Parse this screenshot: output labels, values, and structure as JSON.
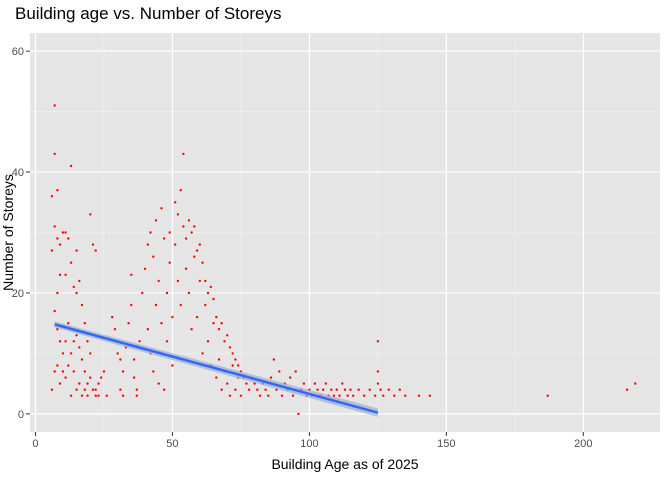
{
  "chart_data": {
    "type": "scatter",
    "title": "Building age vs. Number of Storeys",
    "xlabel": "Building Age as of 2025",
    "ylabel": "Number of Storeys",
    "xlim": [
      -2,
      228
    ],
    "ylim": [
      -3,
      63
    ],
    "xticks": [
      0,
      50,
      100,
      150,
      200
    ],
    "yticks": [
      0,
      20,
      40,
      60
    ],
    "grid": true,
    "point_color": "#ff0000",
    "trend_color": "#3366ff",
    "band_color": "#9db0cf",
    "panel_background": "#e5e5e5",
    "trend_line": {
      "x": [
        7,
        125
      ],
      "y": [
        14.8,
        0.2
      ],
      "se": 0.5
    },
    "points": [
      [
        7,
        51
      ],
      [
        7,
        43
      ],
      [
        8,
        37
      ],
      [
        6,
        36
      ],
      [
        7,
        31
      ],
      [
        8,
        29
      ],
      [
        9,
        28
      ],
      [
        10,
        30
      ],
      [
        11,
        30
      ],
      [
        12,
        29
      ],
      [
        13,
        41
      ],
      [
        11,
        23
      ],
      [
        13,
        25
      ],
      [
        14,
        21
      ],
      [
        15,
        20
      ],
      [
        9,
        23
      ],
      [
        8,
        20
      ],
      [
        6,
        27
      ],
      [
        7,
        17
      ],
      [
        8,
        14
      ],
      [
        9,
        12
      ],
      [
        10,
        10
      ],
      [
        8,
        8
      ],
      [
        7,
        7
      ],
      [
        6,
        4
      ],
      [
        10,
        7
      ],
      [
        11,
        6
      ],
      [
        12,
        8
      ],
      [
        13,
        10
      ],
      [
        14,
        12
      ],
      [
        15,
        13
      ],
      [
        16,
        11
      ],
      [
        17,
        9
      ],
      [
        18,
        7
      ],
      [
        19,
        5
      ],
      [
        20,
        6
      ],
      [
        21,
        4
      ],
      [
        16,
        5
      ],
      [
        17,
        3
      ],
      [
        14,
        7
      ],
      [
        20,
        33
      ],
      [
        21,
        28
      ],
      [
        22,
        27
      ],
      [
        19,
        12
      ],
      [
        20,
        10
      ],
      [
        22,
        4
      ],
      [
        23,
        3
      ],
      [
        18,
        15
      ],
      [
        17,
        18
      ],
      [
        16,
        22
      ],
      [
        15,
        27
      ],
      [
        18,
        4
      ],
      [
        22,
        3
      ],
      [
        24,
        6
      ],
      [
        25,
        7
      ],
      [
        26,
        3
      ],
      [
        23,
        5
      ],
      [
        19,
        3
      ],
      [
        12,
        15
      ],
      [
        11,
        12
      ],
      [
        9,
        5
      ],
      [
        13,
        3
      ],
      [
        15,
        4
      ],
      [
        28,
        16
      ],
      [
        29,
        14
      ],
      [
        30,
        12
      ],
      [
        30,
        10
      ],
      [
        31,
        9
      ],
      [
        31,
        4
      ],
      [
        32,
        3
      ],
      [
        32,
        7
      ],
      [
        33,
        11
      ],
      [
        34,
        15
      ],
      [
        35,
        18
      ],
      [
        35,
        23
      ],
      [
        36,
        9
      ],
      [
        36,
        6
      ],
      [
        37,
        4
      ],
      [
        37,
        3
      ],
      [
        38,
        12
      ],
      [
        39,
        20
      ],
      [
        40,
        24
      ],
      [
        41,
        28
      ],
      [
        41,
        14
      ],
      [
        42,
        30
      ],
      [
        42,
        10
      ],
      [
        43,
        26
      ],
      [
        43,
        7
      ],
      [
        44,
        32
      ],
      [
        44,
        18
      ],
      [
        45,
        22
      ],
      [
        45,
        5
      ],
      [
        46,
        34
      ],
      [
        46,
        15
      ],
      [
        47,
        29
      ],
      [
        47,
        4
      ],
      [
        48,
        20
      ],
      [
        48,
        12
      ],
      [
        49,
        30
      ],
      [
        49,
        25
      ],
      [
        50,
        16
      ],
      [
        50,
        8
      ],
      [
        51,
        35
      ],
      [
        51,
        28
      ],
      [
        52,
        33
      ],
      [
        52,
        22
      ],
      [
        53,
        37
      ],
      [
        53,
        18
      ],
      [
        54,
        43
      ],
      [
        54,
        31
      ],
      [
        55,
        29
      ],
      [
        55,
        24
      ],
      [
        56,
        32
      ],
      [
        56,
        20
      ],
      [
        57,
        30
      ],
      [
        57,
        14
      ],
      [
        58,
        31
      ],
      [
        58,
        26
      ],
      [
        59,
        27
      ],
      [
        59,
        16
      ],
      [
        60,
        28
      ],
      [
        60,
        22
      ],
      [
        61,
        25
      ],
      [
        61,
        10
      ],
      [
        62,
        22
      ],
      [
        62,
        18
      ],
      [
        63,
        20
      ],
      [
        63,
        12
      ],
      [
        64,
        21
      ],
      [
        64,
        8
      ],
      [
        65,
        19
      ],
      [
        65,
        15
      ],
      [
        66,
        16
      ],
      [
        66,
        6
      ],
      [
        67,
        14
      ],
      [
        67,
        9
      ],
      [
        68,
        15
      ],
      [
        68,
        4
      ],
      [
        69,
        12
      ],
      [
        69,
        7
      ],
      [
        70,
        13
      ],
      [
        70,
        5
      ],
      [
        71,
        11
      ],
      [
        71,
        3
      ],
      [
        72,
        10
      ],
      [
        72,
        8
      ],
      [
        73,
        9
      ],
      [
        73,
        4
      ],
      [
        74,
        8
      ],
      [
        74,
        6
      ],
      [
        75,
        7
      ],
      [
        75,
        3
      ],
      [
        76,
        6
      ],
      [
        77,
        5
      ],
      [
        78,
        4
      ],
      [
        79,
        6
      ],
      [
        80,
        5
      ],
      [
        81,
        4
      ],
      [
        82,
        3
      ],
      [
        83,
        5
      ],
      [
        84,
        4
      ],
      [
        85,
        3
      ],
      [
        86,
        6
      ],
      [
        87,
        9
      ],
      [
        88,
        4
      ],
      [
        89,
        7
      ],
      [
        90,
        3
      ],
      [
        91,
        5
      ],
      [
        92,
        4
      ],
      [
        93,
        6
      ],
      [
        94,
        3
      ],
      [
        95,
        7
      ],
      [
        96,
        0
      ],
      [
        97,
        4
      ],
      [
        98,
        5
      ],
      [
        99,
        3
      ],
      [
        100,
        4
      ],
      [
        101,
        3
      ],
      [
        102,
        5
      ],
      [
        103,
        4
      ],
      [
        104,
        3
      ],
      [
        105,
        4
      ],
      [
        106,
        5
      ],
      [
        107,
        3
      ],
      [
        108,
        4
      ],
      [
        109,
        3
      ],
      [
        110,
        4
      ],
      [
        111,
        3
      ],
      [
        112,
        5
      ],
      [
        113,
        4
      ],
      [
        114,
        3
      ],
      [
        115,
        4
      ],
      [
        116,
        3
      ],
      [
        118,
        4
      ],
      [
        120,
        3
      ],
      [
        122,
        4
      ],
      [
        124,
        3
      ],
      [
        125,
        12
      ],
      [
        125,
        7
      ],
      [
        125,
        5
      ],
      [
        126,
        4
      ],
      [
        127,
        3
      ],
      [
        129,
        4
      ],
      [
        131,
        3
      ],
      [
        133,
        4
      ],
      [
        135,
        3
      ],
      [
        140,
        3
      ],
      [
        144,
        3
      ],
      [
        187,
        3
      ],
      [
        216,
        4
      ],
      [
        219,
        5
      ]
    ]
  }
}
